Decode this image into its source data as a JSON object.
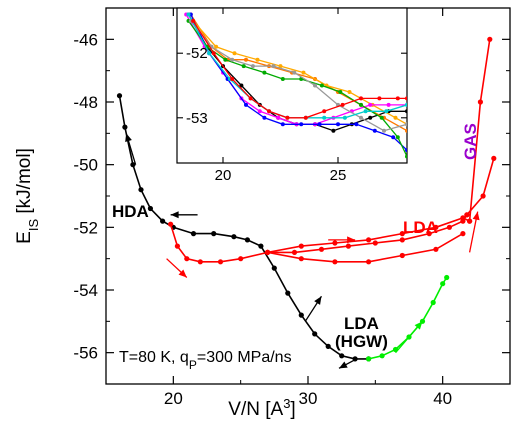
{
  "chart_data": {
    "type": "scatter",
    "xlabel_main": "V/N [A",
    "xlabel_sup": "3",
    "xlabel_end": "]",
    "ylabel_main": "E",
    "ylabel_sub": "IS",
    "ylabel_end": " [kJ/mol]",
    "xlim": [
      15,
      45
    ],
    "ylim": [
      -57,
      -45
    ],
    "xticks": [
      "20",
      "30",
      "40"
    ],
    "xtick_values": [
      20,
      30,
      40
    ],
    "yticks": [
      "-46",
      "-48",
      "-50",
      "-52",
      "-54",
      "-56"
    ],
    "ytick_values": [
      -46,
      -48,
      -50,
      -52,
      -54,
      -56
    ],
    "annotations": {
      "hda": "HDA",
      "lda_red": "LDA",
      "lda_hgw_1": "LDA",
      "lda_hgw_2": "(HGW)",
      "gas": "GAS",
      "cond_prefix": "T=80 K, q",
      "cond_sub": "P",
      "cond_suffix": "=300 MPa/ns"
    },
    "colors": {
      "compression": "#000000",
      "decompression": "#ff0000",
      "recompression": "#00ee00",
      "gas": "#9900cc"
    },
    "series": [
      {
        "color": "#000000",
        "points": [
          [
            16.0,
            -47.8
          ],
          [
            16.4,
            -48.8
          ],
          [
            17.0,
            -50.0
          ],
          [
            17.6,
            -50.8
          ],
          [
            18.3,
            -51.4
          ],
          [
            19.2,
            -51.8
          ],
          [
            20.0,
            -52.0
          ],
          [
            21.5,
            -52.2
          ],
          [
            23.0,
            -52.2
          ],
          [
            24.5,
            -52.3
          ],
          [
            25.5,
            -52.4
          ],
          [
            26.5,
            -52.6
          ],
          [
            27.5,
            -53.3
          ],
          [
            28.5,
            -54.1
          ],
          [
            29.5,
            -54.8
          ],
          [
            30.5,
            -55.4
          ],
          [
            31.5,
            -55.8
          ],
          [
            32.5,
            -56.1
          ],
          [
            33.5,
            -56.2
          ],
          [
            34.5,
            -56.2
          ]
        ]
      },
      {
        "color": "#ff0000",
        "points": [
          [
            19.8,
            -51.9
          ],
          [
            20.3,
            -52.6
          ],
          [
            21.0,
            -53.0
          ],
          [
            22.0,
            -53.1
          ],
          [
            23.5,
            -53.1
          ],
          [
            25.0,
            -53.0
          ],
          [
            27.0,
            -52.8
          ],
          [
            29.0,
            -52.8
          ],
          [
            31.0,
            -52.7
          ],
          [
            33.0,
            -52.6
          ],
          [
            35.0,
            -52.5
          ],
          [
            37.0,
            -52.4
          ],
          [
            39.0,
            -52.2
          ],
          [
            40.5,
            -52.0
          ],
          [
            41.5,
            -51.8
          ],
          [
            41.8,
            -51.6
          ]
        ]
      },
      {
        "color": "#ff0000",
        "points": [
          [
            27.0,
            -52.8
          ],
          [
            29.5,
            -52.6
          ],
          [
            32.0,
            -52.5
          ],
          [
            34.5,
            -52.4
          ],
          [
            37.0,
            -52.2
          ],
          [
            39.5,
            -52.0
          ],
          [
            41.5,
            -51.7
          ],
          [
            42.0,
            -51.8
          ]
        ]
      },
      {
        "color": "#ff0000",
        "points": [
          [
            27.0,
            -52.8
          ],
          [
            29.5,
            -53.0
          ],
          [
            32.0,
            -53.1
          ],
          [
            34.5,
            -53.1
          ],
          [
            37.0,
            -52.9
          ],
          [
            39.5,
            -52.7
          ],
          [
            41.5,
            -52.2
          ]
        ]
      },
      {
        "color": "#ff0000",
        "points": [
          [
            42.0,
            -51.8
          ],
          [
            42.8,
            -48.0
          ],
          [
            43.5,
            -46.0
          ]
        ]
      },
      {
        "color": "#ff0000",
        "points": [
          [
            41.8,
            -51.6
          ],
          [
            43.0,
            -51.0
          ],
          [
            43.8,
            -49.8
          ]
        ]
      },
      {
        "color": "#00ee00",
        "points": [
          [
            34.5,
            -56.2
          ],
          [
            35.5,
            -56.1
          ],
          [
            36.5,
            -55.9
          ],
          [
            37.5,
            -55.5
          ],
          [
            38.5,
            -55.0
          ],
          [
            39.3,
            -54.4
          ],
          [
            40.0,
            -53.8
          ],
          [
            40.3,
            -53.6
          ]
        ]
      }
    ],
    "arrows": [
      {
        "color": "#000000",
        "from": [
          17.2,
          -50.0
        ],
        "to": [
          16.5,
          -49.0
        ]
      },
      {
        "color": "#000000",
        "from": [
          21.8,
          -51.6
        ],
        "to": [
          19.8,
          -51.6
        ]
      },
      {
        "color": "#000000",
        "from": [
          29.8,
          -55.0
        ],
        "to": [
          31.0,
          -54.2
        ]
      },
      {
        "color": "#000000",
        "from": [
          33.6,
          -56.2
        ],
        "to": [
          32.3,
          -56.5
        ]
      },
      {
        "color": "#ff0000",
        "from": [
          19.5,
          -53.0
        ],
        "to": [
          21.0,
          -53.6
        ]
      },
      {
        "color": "#ff0000",
        "from": [
          31.5,
          -52.4
        ],
        "to": [
          33.5,
          -52.4
        ]
      },
      {
        "color": "#ff0000",
        "from": [
          42.0,
          -52.8
        ],
        "to": [
          42.6,
          -51.5
        ]
      },
      {
        "color": "#00ee00",
        "from": [
          36.5,
          -56.0
        ],
        "to": [
          38.5,
          -55.0
        ]
      }
    ],
    "inset": {
      "xlim": [
        18,
        28
      ],
      "ylim": [
        -53.7,
        -51.3
      ],
      "xticks": [
        "20",
        "25"
      ],
      "xtick_values": [
        20,
        25
      ],
      "yticks": [
        "-52",
        "-53"
      ],
      "ytick_values": [
        -52,
        -53
      ],
      "series": [
        {
          "color": "#000000",
          "points": [
            [
              18.5,
              -51.4
            ],
            [
              19.3,
              -51.9
            ],
            [
              20.0,
              -52.2
            ],
            [
              20.8,
              -52.5
            ],
            [
              21.6,
              -52.8
            ],
            [
              22.4,
              -53.0
            ],
            [
              23.2,
              -53.1
            ],
            [
              24.0,
              -53.1
            ],
            [
              24.8,
              -53.2
            ],
            [
              25.6,
              -53.1
            ],
            [
              26.4,
              -53.0
            ],
            [
              27.2,
              -52.9
            ],
            [
              28.0,
              -52.9
            ]
          ]
        },
        {
          "color": "#ff7700",
          "points": [
            [
              18.6,
              -51.4
            ],
            [
              19.5,
              -51.9
            ],
            [
              20.2,
              -52.1
            ],
            [
              21.0,
              -52.1
            ],
            [
              22.0,
              -52.2
            ],
            [
              23.0,
              -52.3
            ],
            [
              24.0,
              -52.4
            ],
            [
              25.0,
              -52.6
            ],
            [
              26.0,
              -52.8
            ],
            [
              27.0,
              -53.0
            ],
            [
              28.0,
              -53.2
            ]
          ]
        },
        {
          "color": "#ffaa00",
          "points": [
            [
              18.7,
              -51.5
            ],
            [
              19.7,
              -51.9
            ],
            [
              20.5,
              -52.0
            ],
            [
              21.5,
              -52.1
            ],
            [
              22.5,
              -52.2
            ],
            [
              23.5,
              -52.3
            ],
            [
              24.5,
              -52.5
            ],
            [
              25.5,
              -52.6
            ],
            [
              26.5,
              -52.8
            ],
            [
              27.5,
              -53.0
            ],
            [
              28.0,
              -53.1
            ]
          ]
        },
        {
          "color": "#ff00ff",
          "points": [
            [
              18.4,
              -51.4
            ],
            [
              19.2,
              -51.9
            ],
            [
              20.0,
              -52.3
            ],
            [
              20.8,
              -52.7
            ],
            [
              21.6,
              -52.9
            ],
            [
              22.4,
              -53.0
            ],
            [
              23.2,
              -53.1
            ],
            [
              24.0,
              -53.1
            ],
            [
              24.8,
              -53.0
            ],
            [
              25.6,
              -52.9
            ],
            [
              26.4,
              -52.8
            ],
            [
              27.2,
              -52.8
            ],
            [
              28.0,
              -52.8
            ]
          ]
        },
        {
          "color": "#0000ff",
          "points": [
            [
              18.6,
              -51.4
            ],
            [
              19.4,
              -52.0
            ],
            [
              20.2,
              -52.4
            ],
            [
              21.0,
              -52.8
            ],
            [
              21.8,
              -53.0
            ],
            [
              22.6,
              -53.1
            ],
            [
              23.4,
              -53.1
            ],
            [
              24.2,
              -53.1
            ],
            [
              25.0,
              -53.1
            ],
            [
              25.8,
              -53.1
            ],
            [
              26.6,
              -53.2
            ],
            [
              27.4,
              -53.3
            ],
            [
              28.0,
              -53.5
            ]
          ]
        },
        {
          "color": "#00aa00",
          "points": [
            [
              18.5,
              -51.5
            ],
            [
              19.3,
              -51.9
            ],
            [
              20.1,
              -52.1
            ],
            [
              20.9,
              -52.2
            ],
            [
              21.8,
              -52.3
            ],
            [
              22.6,
              -52.4
            ],
            [
              23.4,
              -52.4
            ],
            [
              24.3,
              -52.5
            ],
            [
              25.1,
              -52.6
            ],
            [
              26.0,
              -52.8
            ],
            [
              26.9,
              -53.0
            ],
            [
              27.6,
              -53.3
            ],
            [
              28.0,
              -53.6
            ]
          ]
        },
        {
          "color": "#999999",
          "points": [
            [
              18.6,
              -51.5
            ],
            [
              19.5,
              -51.9
            ],
            [
              20.4,
              -52.1
            ],
            [
              21.3,
              -52.2
            ],
            [
              22.2,
              -52.2
            ],
            [
              23.1,
              -52.3
            ],
            [
              24.0,
              -52.5
            ],
            [
              25.0,
              -52.8
            ],
            [
              26.0,
              -53.0
            ],
            [
              27.0,
              -53.2
            ],
            [
              28.0,
              -53.1
            ]
          ]
        },
        {
          "color": "#00cccc",
          "points": [
            [
              18.5,
              -51.4
            ],
            [
              19.4,
              -52.0
            ],
            [
              20.3,
              -52.4
            ],
            [
              21.2,
              -52.7
            ],
            [
              22.0,
              -52.9
            ],
            [
              22.8,
              -53.0
            ],
            [
              23.6,
              -53.0
            ],
            [
              24.4,
              -53.0
            ],
            [
              25.3,
              -53.0
            ],
            [
              26.2,
              -52.9
            ],
            [
              27.1,
              -52.9
            ],
            [
              28.0,
              -52.8
            ]
          ]
        },
        {
          "color": "#ff0000",
          "points": [
            [
              18.7,
              -51.5
            ],
            [
              19.6,
              -52.0
            ],
            [
              20.4,
              -52.4
            ],
            [
              21.2,
              -52.7
            ],
            [
              22.0,
              -52.9
            ],
            [
              22.8,
              -53.0
            ],
            [
              23.6,
              -53.0
            ],
            [
              24.4,
              -52.9
            ],
            [
              25.2,
              -52.8
            ],
            [
              26.0,
              -52.7
            ],
            [
              26.8,
              -52.7
            ],
            [
              27.6,
              -52.7
            ],
            [
              28.0,
              -52.7
            ]
          ]
        }
      ]
    }
  }
}
